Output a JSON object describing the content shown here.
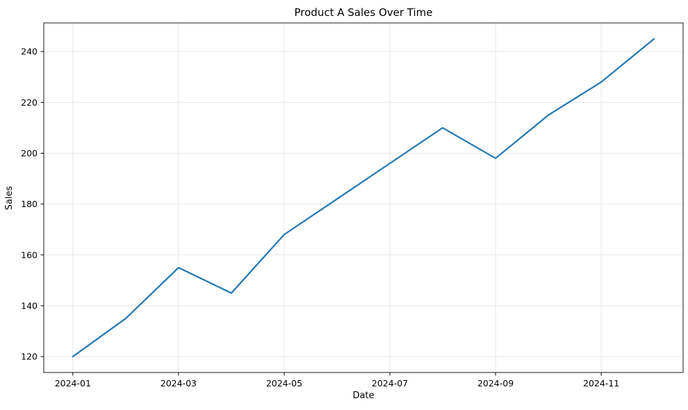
{
  "chart_data": {
    "type": "line",
    "title": "Product A Sales Over Time",
    "xlabel": "Date",
    "ylabel": "Sales",
    "x": [
      "2024-01",
      "2024-02",
      "2024-03",
      "2024-04",
      "2024-05",
      "2024-06",
      "2024-07",
      "2024-08",
      "2024-09",
      "2024-10",
      "2024-11",
      "2024-12"
    ],
    "series": [
      {
        "name": "Product A",
        "values": [
          120,
          135,
          155,
          145,
          168,
          182,
          196,
          210,
          198,
          215,
          228,
          245
        ]
      }
    ],
    "x_tick_months": [
      0,
      2,
      4,
      6,
      8,
      10
    ],
    "x_tick_labels": [
      "2024-01",
      "2024-03",
      "2024-05",
      "2024-07",
      "2024-09",
      "2024-11"
    ],
    "y_ticks": [
      120,
      140,
      160,
      180,
      200,
      220,
      240
    ],
    "ylim": [
      113.75,
      251.25
    ],
    "xlim_months": [
      -0.55,
      11.55
    ],
    "grid": true,
    "legend_position": "none",
    "colors": {
      "line": "#1f77b4",
      "grid": "#e6e6e6",
      "spine": "#1a1a1a",
      "tick": "#000000",
      "text": "#000000",
      "background": "#ffffff"
    }
  }
}
